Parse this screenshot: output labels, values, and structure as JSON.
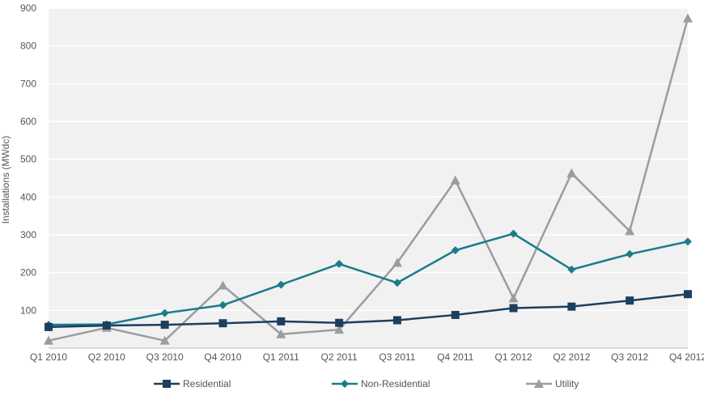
{
  "chart_data": {
    "type": "line",
    "title": "",
    "xlabel": "",
    "ylabel": "Installations (MWdc)",
    "ylim": [
      0,
      900
    ],
    "yticks": [
      100,
      200,
      300,
      400,
      500,
      600,
      700,
      800,
      900
    ],
    "grid": true,
    "legend": "bottom",
    "categories": [
      "Q1 2010",
      "Q2 2010",
      "Q3 2010",
      "Q4 2010",
      "Q1 2011",
      "Q2 2011",
      "Q3 2011",
      "Q4 2011",
      "Q1 2012",
      "Q2 2012",
      "Q3 2012",
      "Q4 2012"
    ],
    "series": [
      {
        "name": "Residential",
        "color": "#1c3f5e",
        "marker": "square",
        "values": [
          56,
          60,
          62,
          66,
          71,
          67,
          74,
          88,
          106,
          110,
          126,
          143
        ]
      },
      {
        "name": "Non-Residential",
        "color": "#1a7c8c",
        "marker": "diamond",
        "values": [
          62,
          63,
          93,
          114,
          168,
          223,
          173,
          259,
          303,
          208,
          249,
          282
        ]
      },
      {
        "name": "Utility",
        "color": "#9a9c9f",
        "marker": "triangle",
        "values": [
          20,
          54,
          20,
          166,
          37,
          49,
          226,
          444,
          132,
          463,
          310,
          873
        ]
      }
    ]
  }
}
